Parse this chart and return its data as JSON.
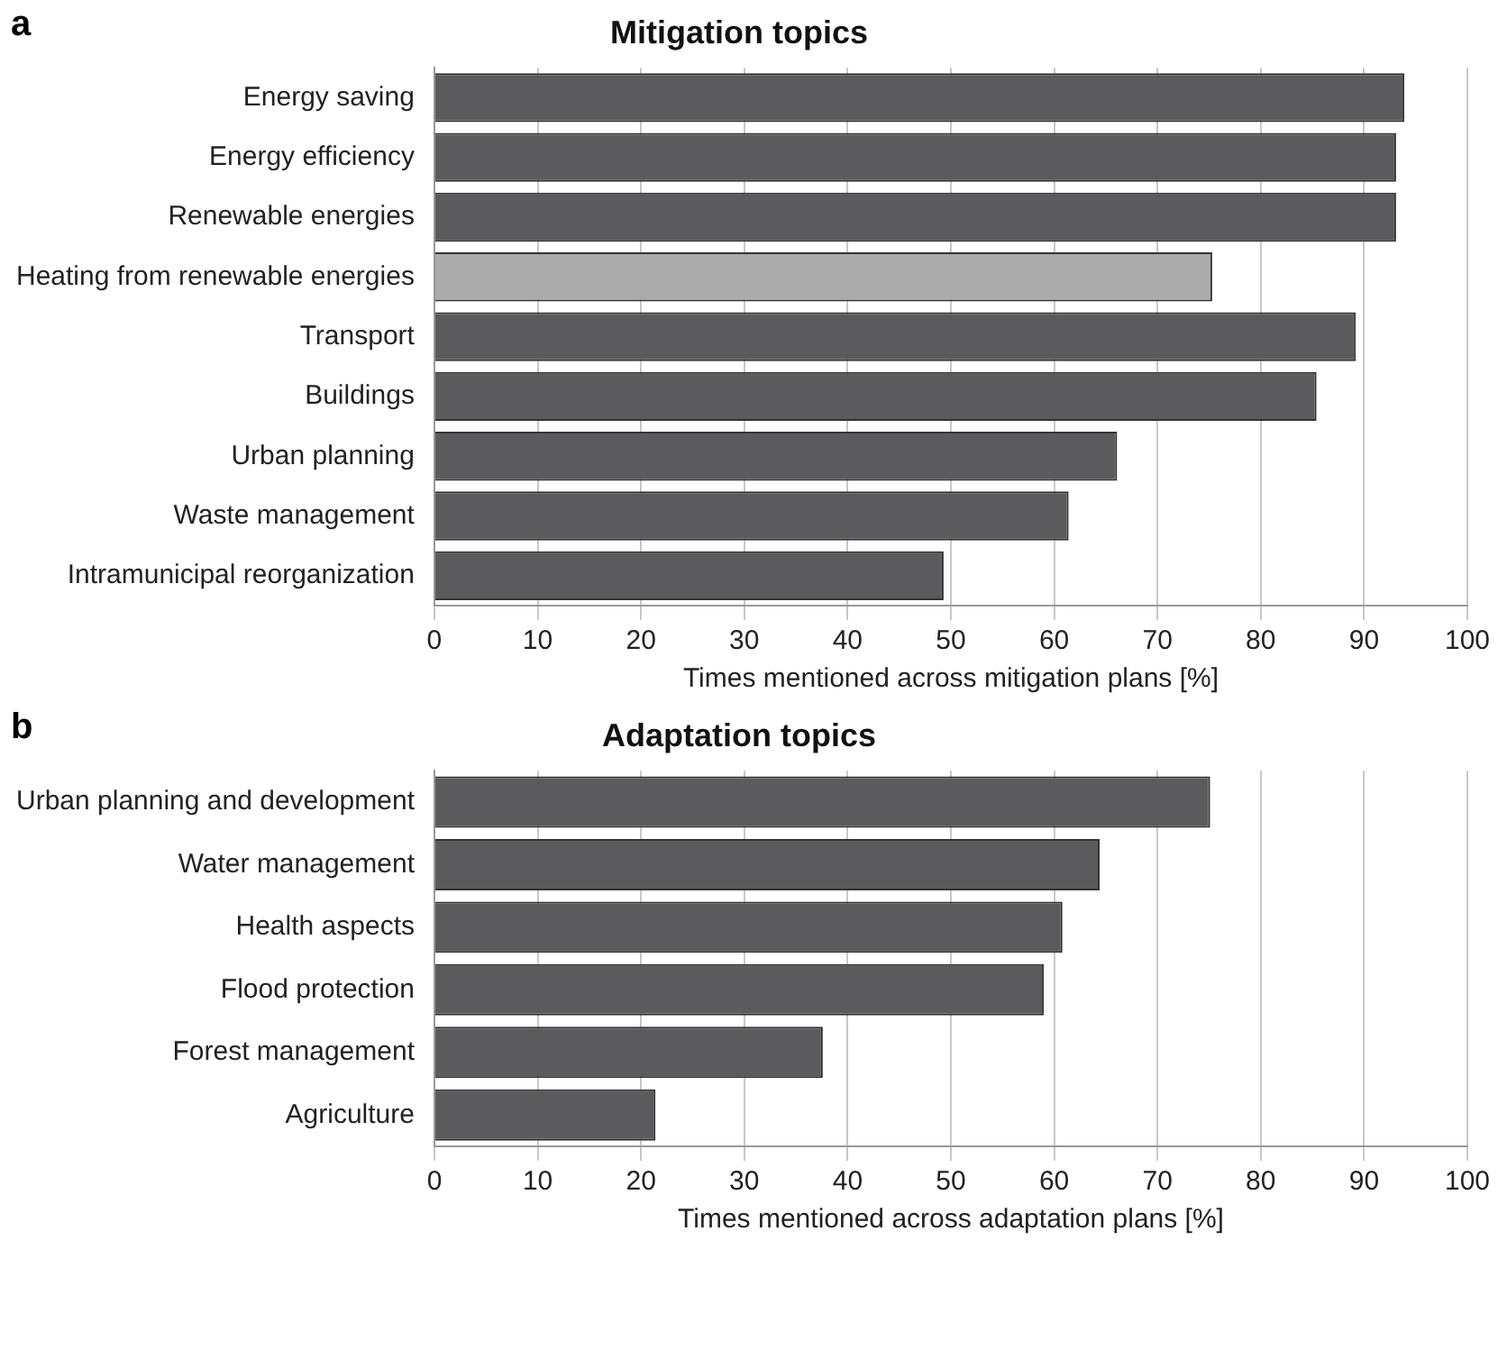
{
  "chart_data": [
    {
      "type": "bar",
      "orientation": "horizontal",
      "title": "Mitigation topics",
      "xlabel": "Times mentioned across mitigation plans [%]",
      "annotations": [
        "a"
      ],
      "categories": [
        "Energy saving",
        "Energy efficiency",
        "Renewable energies",
        "Heating from renewable energies",
        "Transport",
        "Buildings",
        "Urban planning",
        "Waste management",
        "Intramunicipal reorganization"
      ],
      "values": [
        93.9,
        93.1,
        93.1,
        75.3,
        89.2,
        85.4,
        66.1,
        61.4,
        49.3
      ],
      "colors": [
        "#5b5b5e",
        "#5b5b5e",
        "#5b5b5e",
        "#ababab",
        "#5b5b5e",
        "#5b5b5e",
        "#5b5b5e",
        "#5b5b5e",
        "#5b5b5e"
      ],
      "xlim": [
        0,
        100
      ],
      "xticks": [
        0,
        10,
        20,
        30,
        40,
        50,
        60,
        70,
        80,
        90,
        100
      ],
      "grid": "x",
      "legend": false
    },
    {
      "type": "bar",
      "orientation": "horizontal",
      "title": "Adaptation topics",
      "xlabel": "Times mentioned across adaptation plans [%]",
      "annotations": [
        "b"
      ],
      "categories": [
        "Urban planning and development",
        "Water management",
        "Health aspects",
        "Flood protection",
        "Forest management",
        "Agriculture"
      ],
      "values": [
        75.1,
        64.4,
        60.8,
        59.0,
        37.6,
        21.4
      ],
      "colors": [
        "#5b5b5e",
        "#5b5b5e",
        "#5b5b5e",
        "#5b5b5e",
        "#5b5b5e",
        "#5b5b5e"
      ],
      "xlim": [
        0,
        100
      ],
      "xticks": [
        0,
        10,
        20,
        30,
        40,
        50,
        60,
        70,
        80,
        90,
        100
      ],
      "grid": "x",
      "legend": false
    }
  ]
}
